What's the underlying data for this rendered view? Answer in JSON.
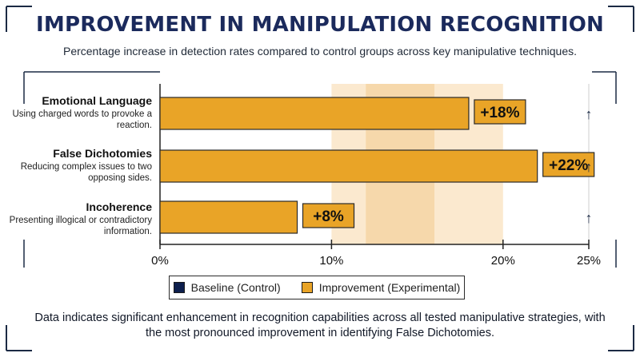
{
  "header": {
    "title": "IMPROVEMENT IN MANIPULATION RECOGNITION",
    "subtitle": "Percentage increase in detection rates compared to control groups across key manipulative techniques."
  },
  "chart_data": {
    "type": "bar",
    "orientation": "horizontal",
    "categories": [
      "Emotional Language",
      "False Dichotomies",
      "Incoherence"
    ],
    "descriptions": [
      "Using charged words to provoke a reaction.",
      "Reducing complex issues to two opposing sides.",
      "Presenting illogical or contradictory information."
    ],
    "series": [
      {
        "name": "Baseline (Control)",
        "values": [
          0,
          0,
          0
        ],
        "color": "#0d1f4d"
      },
      {
        "name": "Improvement (Experimental)",
        "values": [
          18,
          22,
          8
        ],
        "color": "#e9a427"
      }
    ],
    "data_labels": [
      "+18%",
      "+22%",
      "+8%"
    ],
    "trend_markers": [
      "↑",
      "↑",
      "↑"
    ],
    "xlim": [
      0,
      25
    ],
    "xticks": [
      0,
      10,
      20,
      25
    ],
    "xtick_labels": [
      "0%",
      "10%",
      "20%",
      "25%"
    ],
    "highlight_band": [
      10,
      20
    ],
    "highlight_core": [
      12,
      16
    ],
    "legend_position": "bottom"
  },
  "footer": {
    "text": "Data indicates significant enhancement in recognition capabilities across all tested manipulative strategies, with the most pronounced improvement in identifying False Dichotomies."
  },
  "colors": {
    "title": "#1b2a5c",
    "bar_fill": "#e9a427",
    "bar_stroke": "#2a2a2a",
    "band": "#fbe9cf",
    "band_core": "#f6d8ab"
  }
}
